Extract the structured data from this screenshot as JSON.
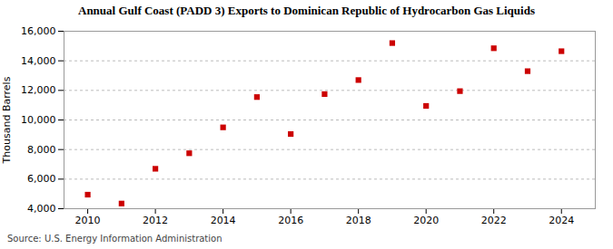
{
  "chart_data": {
    "type": "scatter",
    "title": "Annual Gulf Coast (PADD 3) Exports to Dominican Republic of Hydrocarbon Gas Liquids",
    "ylabel": "Thousand Barrels",
    "source": "Source: U.S. Energy Information Administration",
    "x": [
      2010,
      2011,
      2012,
      2013,
      2014,
      2015,
      2016,
      2017,
      2018,
      2019,
      2020,
      2021,
      2022,
      2023,
      2024
    ],
    "values": [
      4950,
      4350,
      6700,
      7750,
      9500,
      11550,
      9050,
      11750,
      12700,
      15200,
      10950,
      11950,
      14850,
      13300,
      14650
    ],
    "color": "#cc0000",
    "marker": "square",
    "xlim": [
      2009.3,
      2025.0
    ],
    "xticks": [
      2010,
      2012,
      2014,
      2016,
      2018,
      2020,
      2022,
      2024
    ],
    "ylim": [
      4000,
      16000
    ],
    "yticks": [
      {
        "value": 4000,
        "label": "4,000"
      },
      {
        "value": 6000,
        "label": "6,000"
      },
      {
        "value": 8000,
        "label": "8,000"
      },
      {
        "value": 10000,
        "label": "10,000"
      },
      {
        "value": 12000,
        "label": "12,000"
      },
      {
        "value": 14000,
        "label": "14,000"
      },
      {
        "value": 16000,
        "label": "16,000"
      }
    ],
    "grid": "y"
  }
}
